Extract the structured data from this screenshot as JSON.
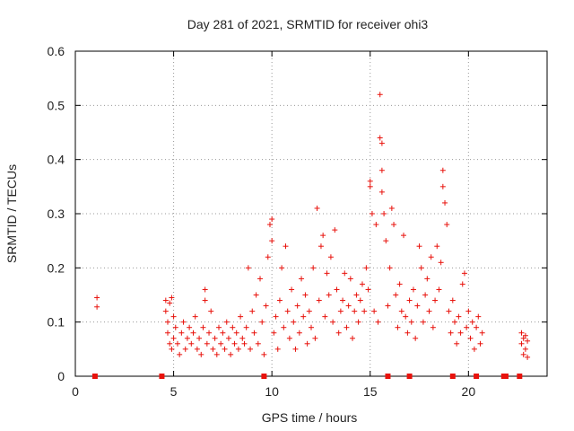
{
  "chart_data": {
    "type": "scatter",
    "title": "Day 281 of 2021, SRMTID for receiver ohi3",
    "xlabel": "GPS time / hours",
    "ylabel": "SRMTID / TECUs",
    "xlim": [
      0,
      24
    ],
    "ylim": [
      0,
      0.6
    ],
    "xticks": [
      0,
      5,
      10,
      15,
      20
    ],
    "yticks": [
      0,
      0.1,
      0.2,
      0.3,
      0.4,
      0.5,
      0.6
    ],
    "xtick_labels": [
      "0",
      "5",
      "10",
      "15",
      "20"
    ],
    "ytick_labels": [
      "0",
      "0.1",
      "0.2",
      "0.3",
      "0.4",
      "0.5",
      "0.6"
    ],
    "grid": true,
    "marker": "+",
    "color": "#e8120c",
    "series": [
      {
        "name": "SRMTID",
        "points": [
          [
            1.1,
            0.145
          ],
          [
            1.1,
            0.128
          ],
          [
            4.6,
            0.14
          ],
          [
            4.6,
            0.12
          ],
          [
            4.7,
            0.1
          ],
          [
            4.7,
            0.08
          ],
          [
            4.8,
            0.06
          ],
          [
            4.8,
            0.135
          ],
          [
            4.9,
            0.05
          ],
          [
            4.9,
            0.145
          ],
          [
            5.0,
            0.11
          ],
          [
            5.0,
            0.07
          ],
          [
            5.1,
            0.09
          ],
          [
            5.2,
            0.06
          ],
          [
            5.3,
            0.04
          ],
          [
            5.4,
            0.08
          ],
          [
            5.5,
            0.1
          ],
          [
            5.6,
            0.05
          ],
          [
            5.7,
            0.07
          ],
          [
            5.8,
            0.09
          ],
          [
            5.9,
            0.06
          ],
          [
            6.0,
            0.08
          ],
          [
            6.1,
            0.11
          ],
          [
            6.2,
            0.05
          ],
          [
            6.3,
            0.07
          ],
          [
            6.4,
            0.04
          ],
          [
            6.5,
            0.09
          ],
          [
            6.6,
            0.16
          ],
          [
            6.6,
            0.14
          ],
          [
            6.7,
            0.06
          ],
          [
            6.8,
            0.08
          ],
          [
            6.9,
            0.12
          ],
          [
            7.0,
            0.05
          ],
          [
            7.1,
            0.07
          ],
          [
            7.2,
            0.04
          ],
          [
            7.3,
            0.09
          ],
          [
            7.4,
            0.06
          ],
          [
            7.5,
            0.08
          ],
          [
            7.6,
            0.05
          ],
          [
            7.7,
            0.1
          ],
          [
            7.8,
            0.07
          ],
          [
            7.9,
            0.04
          ],
          [
            8.0,
            0.09
          ],
          [
            8.1,
            0.06
          ],
          [
            8.2,
            0.08
          ],
          [
            8.3,
            0.05
          ],
          [
            8.4,
            0.11
          ],
          [
            8.5,
            0.07
          ],
          [
            8.6,
            0.06
          ],
          [
            8.7,
            0.09
          ],
          [
            8.8,
            0.2
          ],
          [
            8.9,
            0.05
          ],
          [
            9.0,
            0.12
          ],
          [
            9.1,
            0.08
          ],
          [
            9.2,
            0.15
          ],
          [
            9.3,
            0.06
          ],
          [
            9.4,
            0.18
          ],
          [
            9.5,
            0.1
          ],
          [
            9.6,
            0.04
          ],
          [
            9.7,
            0.13
          ],
          [
            9.8,
            0.22
          ],
          [
            9.9,
            0.28
          ],
          [
            10.0,
            0.25
          ],
          [
            10.0,
            0.29
          ],
          [
            10.1,
            0.08
          ],
          [
            10.2,
            0.11
          ],
          [
            10.3,
            0.05
          ],
          [
            10.4,
            0.14
          ],
          [
            10.5,
            0.2
          ],
          [
            10.6,
            0.09
          ],
          [
            10.7,
            0.24
          ],
          [
            10.8,
            0.12
          ],
          [
            10.9,
            0.07
          ],
          [
            11.0,
            0.16
          ],
          [
            11.1,
            0.1
          ],
          [
            11.2,
            0.05
          ],
          [
            11.3,
            0.13
          ],
          [
            11.4,
            0.08
          ],
          [
            11.5,
            0.18
          ],
          [
            11.6,
            0.11
          ],
          [
            11.7,
            0.15
          ],
          [
            11.8,
            0.06
          ],
          [
            11.9,
            0.12
          ],
          [
            12.0,
            0.09
          ],
          [
            12.1,
            0.2
          ],
          [
            12.2,
            0.07
          ],
          [
            12.3,
            0.31
          ],
          [
            12.4,
            0.14
          ],
          [
            12.5,
            0.24
          ],
          [
            12.6,
            0.26
          ],
          [
            12.7,
            0.11
          ],
          [
            12.8,
            0.19
          ],
          [
            12.9,
            0.15
          ],
          [
            13.0,
            0.22
          ],
          [
            13.1,
            0.1
          ],
          [
            13.2,
            0.27
          ],
          [
            13.3,
            0.16
          ],
          [
            13.4,
            0.08
          ],
          [
            13.5,
            0.12
          ],
          [
            13.6,
            0.14
          ],
          [
            13.7,
            0.19
          ],
          [
            13.8,
            0.09
          ],
          [
            13.9,
            0.13
          ],
          [
            14.0,
            0.18
          ],
          [
            14.1,
            0.07
          ],
          [
            14.2,
            0.12
          ],
          [
            14.3,
            0.15
          ],
          [
            14.4,
            0.1
          ],
          [
            14.5,
            0.14
          ],
          [
            14.6,
            0.17
          ],
          [
            14.7,
            0.12
          ],
          [
            14.8,
            0.2
          ],
          [
            14.9,
            0.16
          ],
          [
            15.0,
            0.35
          ],
          [
            15.0,
            0.36
          ],
          [
            15.1,
            0.3
          ],
          [
            15.2,
            0.12
          ],
          [
            15.3,
            0.28
          ],
          [
            15.4,
            0.1
          ],
          [
            15.5,
            0.52
          ],
          [
            15.5,
            0.44
          ],
          [
            15.6,
            0.43
          ],
          [
            15.6,
            0.38
          ],
          [
            15.6,
            0.34
          ],
          [
            15.7,
            0.3
          ],
          [
            15.8,
            0.25
          ],
          [
            15.9,
            0.13
          ],
          [
            16.0,
            0.2
          ],
          [
            16.1,
            0.31
          ],
          [
            16.2,
            0.28
          ],
          [
            16.3,
            0.15
          ],
          [
            16.4,
            0.09
          ],
          [
            16.5,
            0.17
          ],
          [
            16.6,
            0.12
          ],
          [
            16.7,
            0.26
          ],
          [
            16.8,
            0.11
          ],
          [
            16.9,
            0.08
          ],
          [
            17.0,
            0.14
          ],
          [
            17.1,
            0.1
          ],
          [
            17.2,
            0.16
          ],
          [
            17.3,
            0.07
          ],
          [
            17.4,
            0.13
          ],
          [
            17.5,
            0.24
          ],
          [
            17.6,
            0.2
          ],
          [
            17.7,
            0.1
          ],
          [
            17.8,
            0.15
          ],
          [
            17.9,
            0.18
          ],
          [
            18.0,
            0.12
          ],
          [
            18.1,
            0.22
          ],
          [
            18.2,
            0.09
          ],
          [
            18.3,
            0.14
          ],
          [
            18.4,
            0.24
          ],
          [
            18.5,
            0.16
          ],
          [
            18.6,
            0.21
          ],
          [
            18.7,
            0.38
          ],
          [
            18.7,
            0.35
          ],
          [
            18.8,
            0.32
          ],
          [
            18.9,
            0.28
          ],
          [
            19.0,
            0.12
          ],
          [
            19.1,
            0.08
          ],
          [
            19.2,
            0.14
          ],
          [
            19.3,
            0.1
          ],
          [
            19.4,
            0.06
          ],
          [
            19.5,
            0.11
          ],
          [
            19.6,
            0.08
          ],
          [
            19.7,
            0.17
          ],
          [
            19.8,
            0.19
          ],
          [
            19.9,
            0.09
          ],
          [
            20.0,
            0.12
          ],
          [
            20.1,
            0.07
          ],
          [
            20.2,
            0.1
          ],
          [
            20.3,
            0.05
          ],
          [
            20.4,
            0.09
          ],
          [
            20.5,
            0.11
          ],
          [
            20.6,
            0.06
          ],
          [
            20.7,
            0.08
          ],
          [
            22.7,
            0.08
          ],
          [
            22.7,
            0.06
          ],
          [
            22.8,
            0.04
          ],
          [
            22.8,
            0.07
          ],
          [
            22.9,
            0.05
          ],
          [
            22.9,
            0.075
          ],
          [
            23.0,
            0.065
          ],
          [
            23.0,
            0.035
          ]
        ]
      }
    ],
    "baseline_markers": [
      1.0,
      4.4,
      9.6,
      15.9,
      17.0,
      19.2,
      20.4,
      21.8,
      21.9,
      22.6
    ]
  }
}
